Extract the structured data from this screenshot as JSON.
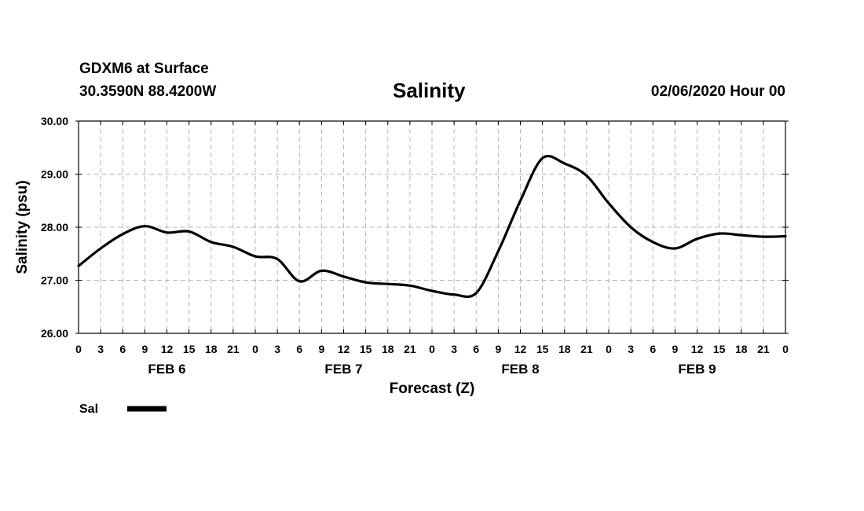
{
  "header": {
    "station": "GDXM6 at Surface",
    "coords": "30.3590N 88.4200W",
    "title": "Salinity",
    "datetime": "02/06/2020 Hour 00"
  },
  "chart_data": {
    "type": "line",
    "title": "Salinity",
    "xlabel": "Forecast (Z)",
    "ylabel": "Salinity (psu)",
    "ylim": [
      26,
      30
    ],
    "xlim": [
      0,
      96
    ],
    "x_unit": "forecast hour",
    "yticks": [
      "26.00",
      "27.00",
      "28.00",
      "29.00",
      "30.00"
    ],
    "xtick_labels": [
      "0",
      "3",
      "6",
      "9",
      "12",
      "15",
      "18",
      "21",
      "0",
      "3",
      "6",
      "9",
      "12",
      "15",
      "18",
      "21",
      "0",
      "3",
      "6",
      "9",
      "12",
      "15",
      "18",
      "21",
      "0",
      "3",
      "6",
      "9",
      "12",
      "15",
      "18",
      "21",
      "0"
    ],
    "day_labels": [
      "FEB 6",
      "FEB 7",
      "FEB 8",
      "FEB 9"
    ],
    "grid": true,
    "legend_position": "bottom-left",
    "series": [
      {
        "name": "Sal",
        "color": "#000000",
        "x": [
          0,
          3,
          6,
          9,
          12,
          15,
          18,
          21,
          24,
          27,
          30,
          33,
          36,
          39,
          42,
          45,
          48,
          51,
          54,
          57,
          60,
          63,
          66,
          69,
          72,
          75,
          78,
          81,
          84,
          87,
          90,
          93,
          96
        ],
        "values": [
          27.27,
          27.6,
          27.87,
          28.02,
          27.9,
          27.92,
          27.72,
          27.63,
          27.45,
          27.4,
          26.98,
          27.18,
          27.07,
          26.96,
          26.93,
          26.9,
          26.8,
          26.73,
          26.76,
          27.55,
          28.5,
          29.3,
          29.2,
          28.97,
          28.45,
          28.0,
          27.72,
          27.6,
          27.78,
          27.88,
          27.85,
          27.82,
          27.83
        ]
      }
    ]
  }
}
